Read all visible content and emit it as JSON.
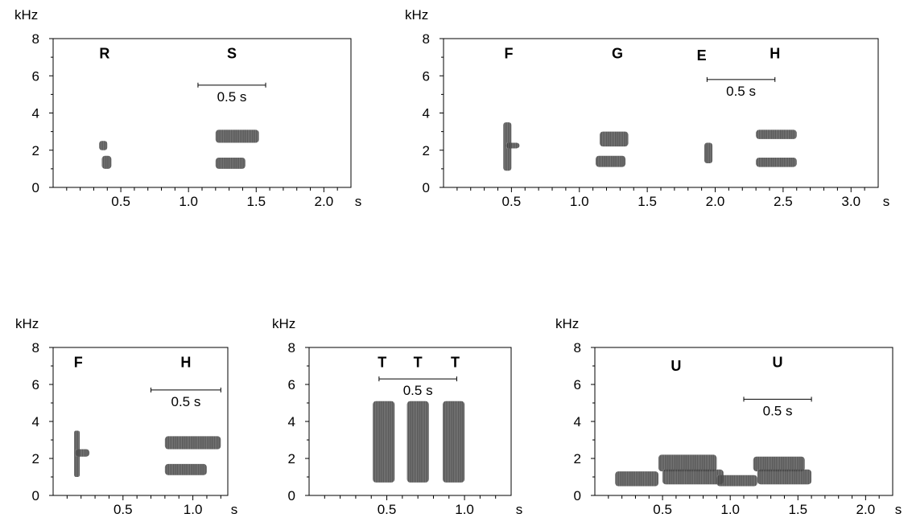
{
  "chart_data": [
    {
      "type": "spectrogram",
      "panel": "top-left",
      "ylabel": "kHz",
      "xunit": "s",
      "ylim": [
        0,
        8
      ],
      "yticks": [
        "0",
        "2",
        "4",
        "6",
        "8"
      ],
      "xlim": [
        0,
        2.2
      ],
      "xticks": [
        {
          "v": 0.5,
          "label": "0.5"
        },
        {
          "v": 1.0,
          "label": "1.0"
        },
        {
          "v": 1.5,
          "label": "1.5"
        },
        {
          "v": 2.0,
          "label": "2.0"
        }
      ],
      "scale_bar": {
        "label": "0.5 s",
        "x0": 1.07,
        "x1": 1.57,
        "y": 5.5
      },
      "note_labels": [
        {
          "text": "R",
          "x": 0.38,
          "y": 7.2
        },
        {
          "text": "S",
          "x": 1.32,
          "y": 7.2
        }
      ],
      "elements": [
        {
          "t0": 0.34,
          "t1": 0.4,
          "f0": 2.0,
          "f1": 2.5
        },
        {
          "t0": 0.36,
          "t1": 0.43,
          "f0": 1.0,
          "f1": 1.7
        },
        {
          "t0": 1.2,
          "t1": 1.52,
          "f0": 2.4,
          "f1": 3.1
        },
        {
          "t0": 1.2,
          "t1": 1.42,
          "f0": 1.0,
          "f1": 1.6
        }
      ]
    },
    {
      "type": "spectrogram",
      "panel": "top-right",
      "ylabel": "kHz",
      "xunit": "s",
      "ylim": [
        0,
        8
      ],
      "yticks": [
        "0",
        "2",
        "4",
        "6",
        "8"
      ],
      "xlim": [
        0,
        3.2
      ],
      "xticks": [
        {
          "v": 0.5,
          "label": "0.5"
        },
        {
          "v": 1.0,
          "label": "1.0"
        },
        {
          "v": 1.5,
          "label": "1.5"
        },
        {
          "v": 2.0,
          "label": "2.0"
        },
        {
          "v": 2.5,
          "label": "2.5"
        },
        {
          "v": 3.0,
          "label": "3.0"
        }
      ],
      "scale_bar": {
        "label": "0.5 s",
        "x0": 1.94,
        "x1": 2.44,
        "y": 5.8
      },
      "note_labels": [
        {
          "text": "F",
          "x": 0.48,
          "y": 7.2
        },
        {
          "text": "G",
          "x": 1.28,
          "y": 7.2
        },
        {
          "text": "E",
          "x": 1.9,
          "y": 7.1
        },
        {
          "text": "H",
          "x": 2.44,
          "y": 7.2
        }
      ],
      "elements": [
        {
          "t0": 0.44,
          "t1": 0.5,
          "f0": 0.9,
          "f1": 3.5
        },
        {
          "t0": 0.46,
          "t1": 0.56,
          "f0": 2.1,
          "f1": 2.4
        },
        {
          "t0": 1.15,
          "t1": 1.36,
          "f0": 2.2,
          "f1": 3.0
        },
        {
          "t0": 1.12,
          "t1": 1.34,
          "f0": 1.1,
          "f1": 1.7
        },
        {
          "t0": 1.92,
          "t1": 1.98,
          "f0": 1.3,
          "f1": 2.4
        },
        {
          "t0": 2.3,
          "t1": 2.6,
          "f0": 2.6,
          "f1": 3.1
        },
        {
          "t0": 2.3,
          "t1": 2.6,
          "f0": 1.1,
          "f1": 1.6
        }
      ]
    },
    {
      "type": "spectrogram",
      "panel": "bottom-left",
      "ylabel": "kHz",
      "xunit": "s",
      "ylim": [
        0,
        8
      ],
      "yticks": [
        "0",
        "2",
        "4",
        "6",
        "8"
      ],
      "xlim": [
        0,
        1.25
      ],
      "xticks": [
        {
          "v": 0.5,
          "label": "0.5"
        },
        {
          "v": 1.0,
          "label": "1.0"
        }
      ],
      "scale_bar": {
        "label": "0.5 s",
        "x0": 0.7,
        "x1": 1.2,
        "y": 5.7
      },
      "note_labels": [
        {
          "text": "F",
          "x": 0.18,
          "y": 7.2
        },
        {
          "text": "H",
          "x": 0.95,
          "y": 7.2
        }
      ],
      "elements": [
        {
          "t0": 0.15,
          "t1": 0.19,
          "f0": 1.0,
          "f1": 3.5
        },
        {
          "t0": 0.16,
          "t1": 0.26,
          "f0": 2.1,
          "f1": 2.5
        },
        {
          "t0": 0.8,
          "t1": 1.2,
          "f0": 2.5,
          "f1": 3.2
        },
        {
          "t0": 0.8,
          "t1": 1.1,
          "f0": 1.1,
          "f1": 1.7
        }
      ]
    },
    {
      "type": "spectrogram",
      "panel": "bottom-middle",
      "ylabel": "kHz",
      "xunit": "s",
      "ylim": [
        0,
        8
      ],
      "yticks": [
        "0",
        "2",
        "4",
        "6",
        "8"
      ],
      "xlim": [
        0,
        1.3
      ],
      "xticks": [
        {
          "v": 0.5,
          "label": "0.5"
        },
        {
          "v": 1.0,
          "label": "1.0"
        }
      ],
      "scale_bar": {
        "label": "0.5 s",
        "x0": 0.45,
        "x1": 0.95,
        "y": 6.3
      },
      "note_labels": [
        {
          "text": "T",
          "x": 0.47,
          "y": 7.2
        },
        {
          "text": "T",
          "x": 0.7,
          "y": 7.2
        },
        {
          "text": "T",
          "x": 0.94,
          "y": 7.2
        }
      ],
      "elements": [
        {
          "t0": 0.41,
          "t1": 0.55,
          "f0": 0.7,
          "f1": 5.1
        },
        {
          "t0": 0.63,
          "t1": 0.77,
          "f0": 0.7,
          "f1": 5.1
        },
        {
          "t0": 0.86,
          "t1": 1.0,
          "f0": 0.7,
          "f1": 5.1
        }
      ]
    },
    {
      "type": "spectrogram",
      "panel": "bottom-right",
      "ylabel": "kHz",
      "xunit": "s",
      "ylim": [
        0,
        8
      ],
      "yticks": [
        "0",
        "2",
        "4",
        "6",
        "8"
      ],
      "xlim": [
        0,
        2.2
      ],
      "xticks": [
        {
          "v": 0.5,
          "label": "0.5"
        },
        {
          "v": 1.0,
          "label": "1.0"
        },
        {
          "v": 1.5,
          "label": "1.5"
        },
        {
          "v": 2.0,
          "label": "2.0"
        }
      ],
      "scale_bar": {
        "label": "0.5 s",
        "x0": 1.1,
        "x1": 1.6,
        "y": 5.2
      },
      "note_labels": [
        {
          "text": "U",
          "x": 0.6,
          "y": 7.0
        },
        {
          "text": "U",
          "x": 1.35,
          "y": 7.2
        }
      ],
      "elements": [
        {
          "t0": 0.15,
          "t1": 0.47,
          "f0": 0.5,
          "f1": 1.3
        },
        {
          "t0": 0.47,
          "t1": 0.9,
          "f0": 1.3,
          "f1": 2.2
        },
        {
          "t0": 0.5,
          "t1": 0.95,
          "f0": 0.6,
          "f1": 1.4
        },
        {
          "t0": 0.9,
          "t1": 1.2,
          "f0": 0.5,
          "f1": 1.1
        },
        {
          "t0": 1.17,
          "t1": 1.55,
          "f0": 1.3,
          "f1": 2.1
        },
        {
          "t0": 1.2,
          "t1": 1.6,
          "f0": 0.6,
          "f1": 1.4
        }
      ]
    }
  ]
}
